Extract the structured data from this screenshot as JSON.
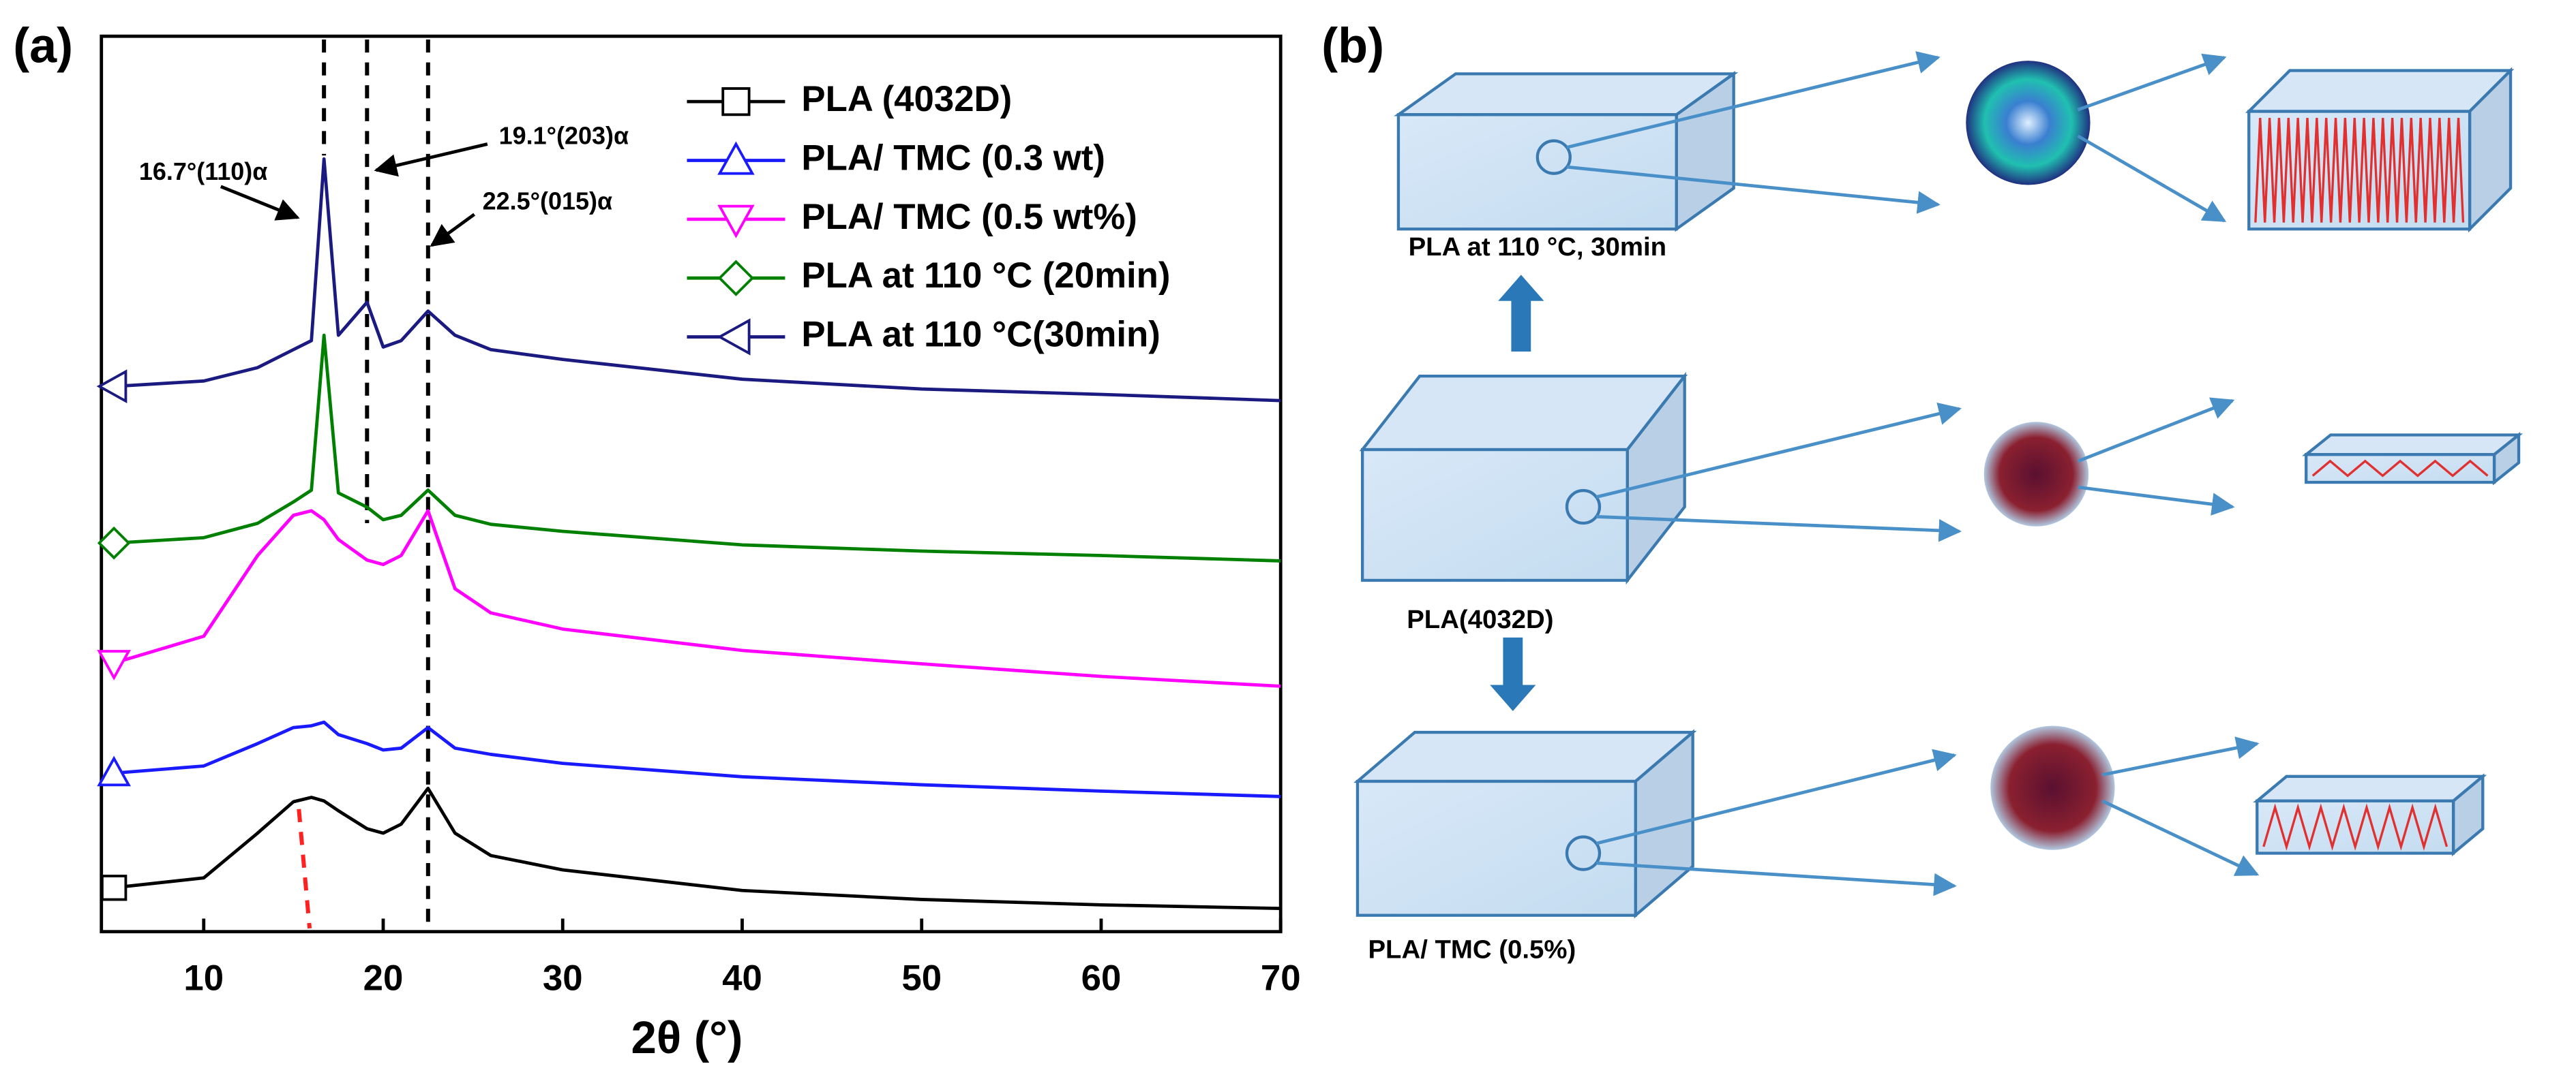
{
  "chart_data": {
    "type": "line",
    "panel_label": "(a)",
    "x_label": "2θ (°)",
    "x": [
      5,
      10,
      13,
      15,
      16,
      16.7,
      17.5,
      19.1,
      20,
      21,
      22.5,
      24,
      26,
      30,
      40,
      50,
      60,
      70
    ],
    "xlim": [
      4.3,
      70
    ],
    "xticks": [
      10,
      20,
      30,
      40,
      50,
      60,
      70
    ],
    "ylim": [
      0,
      100
    ],
    "grid": false,
    "legend": "upper right",
    "series": [
      {
        "name": "PLA (4032D)",
        "color": "#000000",
        "marker": "square",
        "values": [
          4.9,
          6,
          11,
          14.5,
          15,
          14.6,
          13.5,
          11.5,
          11,
          12,
          16,
          11,
          8.5,
          6.9,
          4.6,
          3.6,
          3,
          2.6
        ]
      },
      {
        "name": "PLA/ TMC (0.3 wt)",
        "color": "#1a1aff",
        "marker": "triangle-up",
        "values": [
          17.7,
          18.5,
          21,
          22.8,
          23,
          23.4,
          22,
          21,
          20.3,
          20.5,
          22.8,
          20.5,
          19.8,
          18.8,
          17.3,
          16.4,
          15.7,
          15.1
        ]
      },
      {
        "name": "PLA/ TMC (0.5 wt%)",
        "color": "#ff00ff",
        "marker": "triangle-down",
        "values": [
          30,
          33,
          42,
          46.5,
          47,
          46,
          43.8,
          41.5,
          41,
          42,
          47,
          38.3,
          35.6,
          33.8,
          31.4,
          29.9,
          28.5,
          27.4
        ]
      },
      {
        "name": "PLA at 110 °C (20min)",
        "color": "#008000",
        "marker": "diamond",
        "values": [
          43.4,
          44,
          45.6,
          48,
          49.3,
          66.6,
          49,
          47.4,
          46,
          46.5,
          49.3,
          46.5,
          45.5,
          44.7,
          43.2,
          42.5,
          42,
          41.4
        ]
      },
      {
        "name": "PLA at 110 °C(30min)",
        "color": "#1a1a80",
        "marker": "triangle-left",
        "values": [
          60.9,
          61.5,
          63,
          65,
          66,
          86.3,
          66.6,
          70.3,
          65.3,
          66,
          69.3,
          66.6,
          65,
          63.9,
          61.7,
          60.6,
          60,
          59.3
        ]
      }
    ],
    "peak_lines": [
      16.7,
      19.1,
      22.5
    ],
    "amorphous_line": [
      15.3,
      15.9
    ],
    "annotations": [
      "16.7°(110)α",
      "19.1°(203)α",
      "22.5°(015)α"
    ]
  },
  "schematic": {
    "panel_label": "(b)",
    "samples": [
      "PLA at 110 °C, 30min",
      "PLA(4032D)",
      "PLA/ TMC (0.5%)"
    ]
  }
}
